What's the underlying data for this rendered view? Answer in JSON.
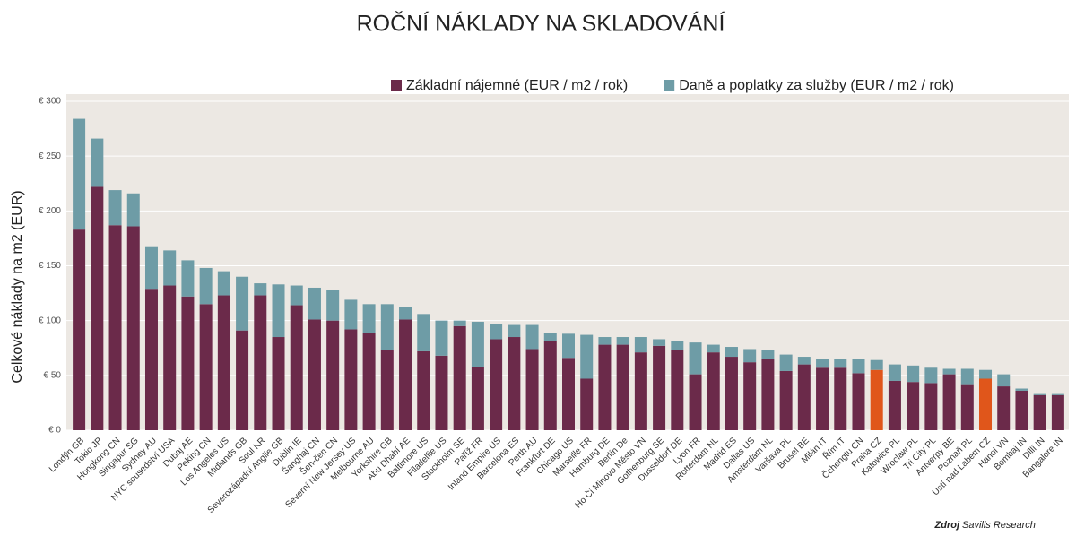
{
  "chart_data": {
    "type": "stacked_bar",
    "title": "ROČNÍ NÁKLADY NA SKLADOVÁNÍ",
    "y_label": "Celkové náklady na m2 (EUR)",
    "source_label": "Zdroj",
    "source": "Savills Research",
    "categories": [
      "Londýn GB",
      "Tokio JP",
      "Hongkong CN",
      "Singapur SG",
      "Sydney AU",
      "NYC sousedství USA",
      "Dubaj AE",
      "Peking CN",
      "Los Angeles US",
      "Midlands GB",
      "Soul KR",
      "Severozápadní Anglie GB",
      "Dublin IE",
      "Šanghaj CN",
      "Šen-čen CN",
      "Severní New Jersey US",
      "Melbourne AU",
      "Yorkshire GB",
      "Abu Dhabí AE",
      "Baltimore US",
      "Filadelfie US",
      "Stockholm SE",
      "Paříž FR",
      "Inland Empire US",
      "Barcelona ES",
      "Perth AU",
      "Frankfurt DE",
      "Chicago US",
      "Marseille FR",
      "Hamburg DE",
      "Berlín De",
      "Ho Či Minovo Město VN",
      "Gothenburg SE",
      "Dusseldorf DE",
      "Lyon FR",
      "Rotterdam NL",
      "Madrid ES",
      "Dallas US",
      "Amsterdam NL",
      "Varšava PL",
      "Brusel BE",
      "Milán IT",
      "Řím IT",
      "Čchengtu CN",
      "Praha CZ",
      "Katowice PL",
      "Wroclaw PL",
      "Tri City PL",
      "Antverpy BE",
      "Poznaň PL",
      "Ústí nad Labem CZ",
      "Hanoi VN",
      "Bombaj IN",
      "Dillí IN",
      "Bangalore IN"
    ],
    "series": [
      {
        "name": "Základní nájemné (EUR / m2 / rok)",
        "color": "#6b2a4a",
        "values": [
          183,
          222,
          187,
          186,
          129,
          132,
          122,
          115,
          123,
          91,
          123,
          85,
          114,
          101,
          100,
          92,
          89,
          73,
          101,
          72,
          68,
          95,
          58,
          83,
          85,
          74,
          81,
          66,
          47,
          78,
          78,
          71,
          77,
          73,
          51,
          71,
          67,
          62,
          65,
          54,
          60,
          57,
          57,
          52,
          55,
          45,
          44,
          43,
          51,
          42,
          47,
          40,
          36,
          32,
          32
        ]
      },
      {
        "name": "Daně a poplatky za služby (EUR / m2 / rok)",
        "color": "#6e9ca6",
        "values": [
          101,
          44,
          32,
          30,
          38,
          32,
          33,
          33,
          22,
          49,
          11,
          48,
          18,
          29,
          28,
          27,
          26,
          42,
          11,
          34,
          32,
          5,
          41,
          14,
          11,
          22,
          8,
          22,
          40,
          7,
          7,
          14,
          6,
          8,
          29,
          7,
          9,
          12,
          8,
          15,
          7,
          8,
          8,
          13,
          9,
          15,
          15,
          14,
          5,
          14,
          8,
          11,
          2,
          1,
          1
        ]
      }
    ],
    "highlighted": [
      "Praha CZ",
      "Ústí nad Labem CZ"
    ],
    "highlight_color": "#e0561b",
    "ylim": [
      0,
      300
    ],
    "yticks": [
      {
        "value": 0,
        "label": "€ 0"
      },
      {
        "value": 50,
        "label": "€ 50"
      },
      {
        "value": 100,
        "label": "€ 100"
      },
      {
        "value": 150,
        "label": "€ 150"
      },
      {
        "value": 200,
        "label": "€ 200"
      },
      {
        "value": 250,
        "label": "€ 250"
      },
      {
        "value": 300,
        "label": "€ 300"
      }
    ],
    "grid": true
  }
}
